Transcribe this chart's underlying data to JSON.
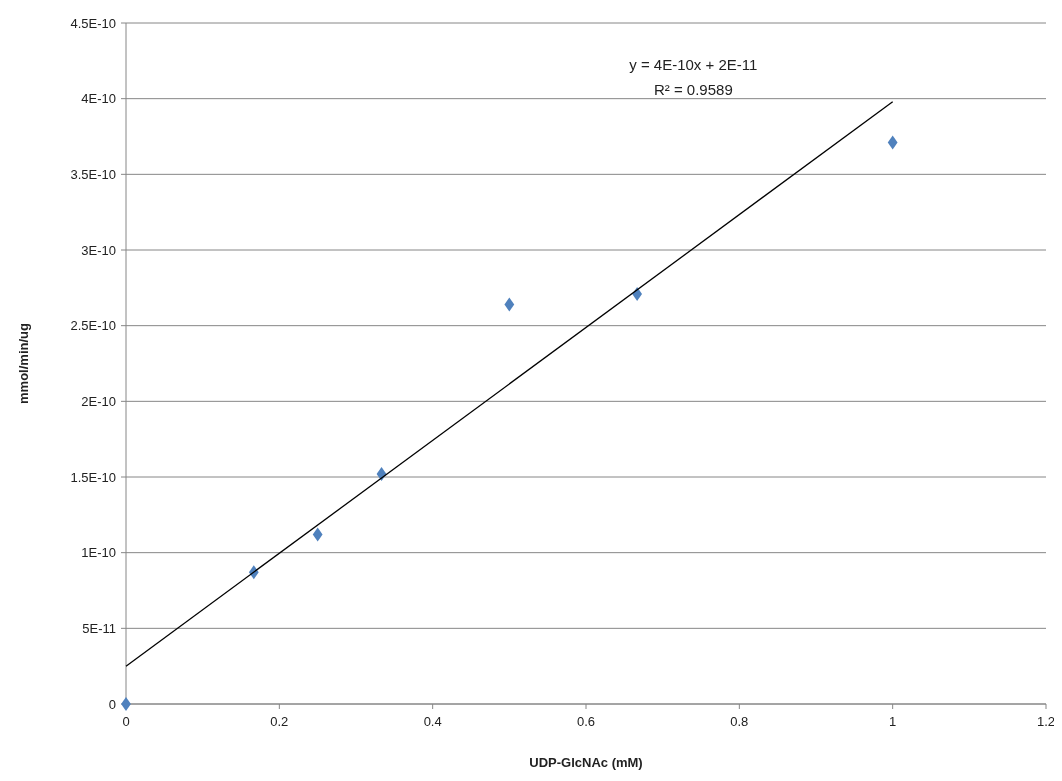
{
  "chart_data": {
    "type": "scatter",
    "xlabel": "UDP-GlcNAc (mM)",
    "ylabel": "mmol/min/ug",
    "series": [
      {
        "color": "#4f81bd",
        "marker": "diamond",
        "x": [
          0,
          0.1667,
          0.25,
          0.3333,
          0.5,
          0.6667,
          1
        ],
        "values": [
          0,
          8.7e-11,
          1.12e-10,
          1.52e-10,
          2.64e-10,
          2.71e-10,
          3.71e-10
        ]
      },
      {
        "type": "line",
        "color": "#000000",
        "marker": "none",
        "x": [
          0,
          1
        ],
        "values": [
          2.5e-11,
          3.98e-10
        ]
      }
    ],
    "xlim": [
      0,
      1.2
    ],
    "xticks": [
      0,
      0.2,
      0.4,
      0.6,
      0.8,
      1,
      1.2
    ],
    "ylim": [
      0,
      4.5e-10
    ],
    "yticks": [
      0,
      {
        "value": 5e-11,
        "label": "5E-11"
      },
      {
        "value": 1e-10,
        "label": "1E-10"
      },
      {
        "value": 1.5e-10,
        "label": "1.5E-10"
      },
      {
        "value": 2e-10,
        "label": "2E-10"
      },
      {
        "value": 2.5e-10,
        "label": "2.5E-10"
      },
      {
        "value": 3e-10,
        "label": "3E-10"
      },
      {
        "value": 3.5e-10,
        "label": "3.5E-10"
      },
      {
        "value": 4e-10,
        "label": "4E-10"
      },
      {
        "value": 4.5e-10,
        "label": "4.5E-10"
      }
    ],
    "grid": "y",
    "annotations": [
      "y = 4E-10x + 2E-11",
      "R² = 0.9589"
    ]
  }
}
